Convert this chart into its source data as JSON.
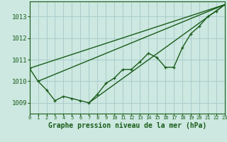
{
  "background_color": "#cce8e0",
  "grid_color": "#aacccc",
  "line_color": "#1a5c1a",
  "xlabel": "Graphe pression niveau de la mer (hPa)",
  "xlim": [
    0,
    23
  ],
  "ylim": [
    1008.5,
    1013.7
  ],
  "yticks": [
    1009,
    1010,
    1011,
    1012,
    1013
  ],
  "xticks": [
    0,
    1,
    2,
    3,
    4,
    5,
    6,
    7,
    8,
    9,
    10,
    11,
    12,
    13,
    14,
    15,
    16,
    17,
    18,
    19,
    20,
    21,
    22,
    23
  ],
  "line1_x": [
    0,
    1,
    2,
    3,
    4,
    5,
    6,
    7,
    8,
    9,
    10,
    11,
    12,
    13,
    14,
    15,
    16,
    17,
    18,
    19,
    20,
    21,
    22,
    23
  ],
  "line1_y": [
    1010.6,
    1010.0,
    1009.6,
    1009.1,
    1009.3,
    1009.2,
    1009.1,
    1009.0,
    1009.4,
    1009.9,
    1010.15,
    1010.55,
    1010.55,
    1010.9,
    1011.3,
    1011.1,
    1010.65,
    1010.65,
    1011.55,
    1012.2,
    1012.55,
    1013.0,
    1013.25,
    1013.55
  ],
  "line2_x": [
    0,
    23
  ],
  "line2_y": [
    1010.6,
    1013.55
  ],
  "line3_x": [
    1,
    23
  ],
  "line3_y": [
    1010.0,
    1013.55
  ],
  "line4_x": [
    7,
    23
  ],
  "line4_y": [
    1009.0,
    1013.55
  ],
  "ytick_fontsize": 6.5,
  "xtick_fontsize": 5.0,
  "xlabel_fontsize": 7.0
}
